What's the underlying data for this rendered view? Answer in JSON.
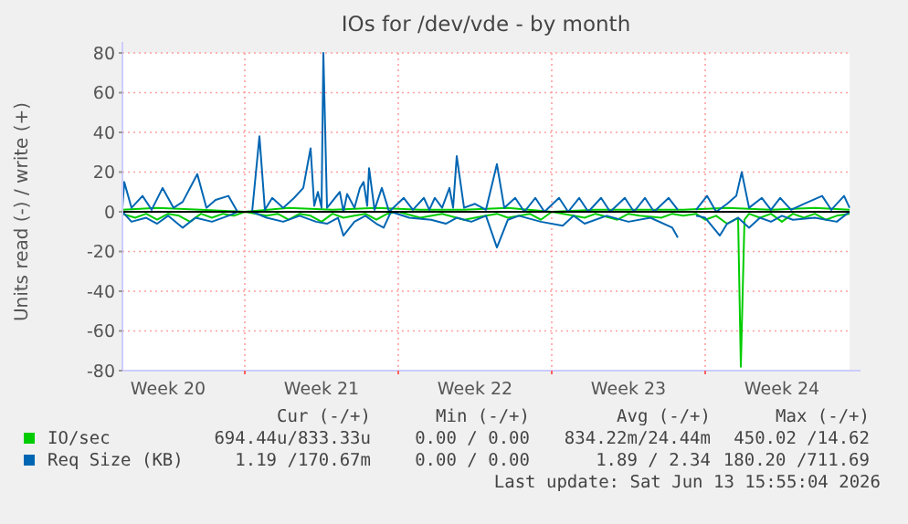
{
  "chart_data": {
    "type": "line",
    "title": "IOs for /dev/vde - by month",
    "ylabel": "Units read (-) / write (+)",
    "xlim": [
      "2026-05-11T10:00",
      "2026-06-13T14:00"
    ],
    "xticks": [
      {
        "value": "2026-05-13T12:00",
        "label": "Week 20"
      },
      {
        "value": "2026-05-17T00:00",
        "label": null
      },
      {
        "value": "2026-05-20T12:00",
        "label": "Week 21"
      },
      {
        "value": "2026-05-24T00:00",
        "label": null
      },
      {
        "value": "2026-05-27T12:00",
        "label": "Week 22"
      },
      {
        "value": "2026-05-31T00:00",
        "label": null
      },
      {
        "value": "2026-06-03T12:00",
        "label": "Week 23"
      },
      {
        "value": "2026-06-07T00:00",
        "label": null
      },
      {
        "value": "2026-06-10T12:00",
        "label": "Week 24"
      }
    ],
    "ylim": [
      -80,
      80
    ],
    "yticks": [
      -80,
      -60,
      -40,
      -20,
      0,
      20,
      40,
      60,
      80
    ],
    "grid": true,
    "legend": "bottom",
    "ref_lines": [
      {
        "axis": "y",
        "value": 0,
        "color": "#000000"
      }
    ],
    "series": [
      {
        "color": "#00cc00",
        "x": [
          "2026-05-11T10:00",
          "2026-05-12T00:00",
          "2026-05-12T12:00",
          "2026-05-13T00:00",
          "2026-05-13T12:00",
          "2026-05-14T00:00",
          "2026-05-14T12:00",
          "2026-05-15T00:00",
          "2026-05-15T12:00",
          "2026-05-16T00:00",
          "2026-05-16T12:00",
          "2026-05-17T00:00",
          "2026-05-18T00:00",
          "2026-05-18T12:00",
          "2026-05-19T00:00",
          "2026-05-19T12:00",
          "2026-05-20T00:00",
          "2026-05-20T12:00",
          "2026-05-21T00:00",
          "2026-05-21T12:00",
          "2026-05-22T00:00",
          "2026-05-22T12:00",
          "2026-05-23T00:00",
          "2026-05-23T12:00",
          "2026-05-24T00:00",
          "2026-05-25T00:00",
          "2026-05-26T00:00",
          "2026-05-27T00:00",
          "2026-05-28T00:00",
          "2026-05-28T12:00",
          "2026-05-29T00:00",
          "2026-05-30T00:00",
          "2026-05-30T12:00",
          "2026-05-31T00:00",
          "2026-06-01T00:00",
          "2026-06-01T12:00",
          "2026-06-02T00:00",
          "2026-06-03T00:00",
          "2026-06-03T12:00",
          "2026-06-04T00:00",
          "2026-06-05T00:00",
          "2026-06-05T12:00",
          "2026-06-06T00:00",
          "2026-06-06T14:00",
          "2026-06-07T00:00",
          "2026-06-07T12:00",
          "2026-06-08T00:00",
          "2026-06-08T12:00",
          "2026-06-08T15:00",
          "2026-06-08T19:00",
          "2026-06-09T00:00",
          "2026-06-09T12:00",
          "2026-06-10T00:00",
          "2026-06-10T12:00",
          "2026-06-11T00:00",
          "2026-06-11T12:00",
          "2026-06-12T00:00",
          "2026-06-12T12:00",
          "2026-06-13T00:00",
          "2026-06-13T14:00"
        ],
        "values": [
          -1,
          -3,
          -1,
          -4,
          -1,
          -2,
          -5,
          -1,
          -3,
          -1,
          -2,
          0,
          -2,
          -1,
          -4,
          -1,
          -2,
          -5,
          -1,
          -3,
          -2,
          -1,
          -4,
          -1,
          0,
          -3,
          -1,
          -4,
          -2,
          -1,
          -3,
          -1,
          -4,
          0,
          -2,
          -3,
          -1,
          -4,
          -1,
          -2,
          -3,
          -1,
          -2,
          -1,
          -4,
          -2,
          -6,
          -3,
          -78,
          -4,
          -1,
          -3,
          -1,
          -5,
          -1,
          -3,
          -1,
          -4,
          -2,
          -1
        ]
      },
      {
        "color": "#0066b3",
        "x": [
          "2026-05-11T10:00",
          "2026-05-11T20:00",
          "2026-05-12T12:00",
          "2026-05-13T00:00",
          "2026-05-13T12:00",
          "2026-05-14T04:00",
          "2026-05-14T18:00",
          "2026-05-15T12:00",
          "2026-05-16T06:00",
          "2026-05-16T16:00",
          "2026-05-17T08:00",
          "2026-05-18T00:00",
          "2026-05-18T18:00",
          "2026-05-19T12:00",
          "2026-05-20T06:00",
          "2026-05-20T18:00",
          "2026-05-21T06:00",
          "2026-05-21T12:00",
          "2026-05-22T00:00",
          "2026-05-22T12:00",
          "2026-05-23T00:00",
          "2026-05-23T08:00",
          "2026-05-23T16:00",
          "2026-05-24T12:00",
          "2026-05-25T12:00",
          "2026-05-26T04:00",
          "2026-05-26T16:00",
          "2026-05-27T08:00",
          "2026-05-28T00:00",
          "2026-05-28T12:00",
          "2026-05-29T00:00",
          "2026-05-29T12:00",
          "2026-05-30T12:00",
          "2026-05-31T12:00",
          "2026-06-01T00:00",
          "2026-06-01T12:00",
          "2026-06-02T12:00",
          "2026-06-03T12:00",
          "2026-06-04T12:00",
          "2026-06-05T12:00",
          "2026-06-05T18:00",
          "2026-06-06T06:00",
          "2026-06-06T14:00",
          "2026-06-07T00:00",
          "2026-06-07T16:00",
          "2026-06-08T00:00",
          "2026-06-08T12:00",
          "2026-06-09T00:00",
          "2026-06-09T12:00",
          "2026-06-10T00:00",
          "2026-06-10T12:00",
          "2026-06-11T00:00",
          "2026-06-12T00:00",
          "2026-06-13T00:00",
          "2026-06-13T14:00"
        ],
        "values": [
          0,
          -5,
          -3,
          -6,
          -2,
          -8,
          -3,
          -5,
          -2,
          0,
          0,
          -3,
          -5,
          -2,
          -5,
          -6,
          -3,
          -12,
          -5,
          -2,
          -6,
          -8,
          0,
          -3,
          -4,
          -6,
          -3,
          -5,
          -2,
          -18,
          -4,
          -2,
          -5,
          -7,
          -2,
          -6,
          -2,
          -5,
          -3,
          -8,
          -13,
          null,
          -2,
          -3,
          -12,
          -6,
          -3,
          -8,
          -3,
          -5,
          -2,
          -4,
          -3,
          -5,
          0
        ]
      },
      {
        "name": "IO/sec",
        "color": "#00cc00",
        "x": [
          "2026-05-11T10:00",
          "2026-05-13T00:00",
          "2026-05-15T00:00",
          "2026-05-17T00:00",
          "2026-05-19T00:00",
          "2026-05-21T00:00",
          "2026-05-23T00:00",
          "2026-05-25T00:00",
          "2026-05-27T00:00",
          "2026-05-29T00:00",
          "2026-05-31T00:00",
          "2026-06-02T00:00",
          "2026-06-04T00:00",
          "2026-06-06T00:00",
          "2026-06-08T00:00",
          "2026-06-10T00:00",
          "2026-06-12T00:00",
          "2026-06-13T14:00"
        ],
        "values": [
          1,
          2,
          1,
          0,
          2,
          1,
          2,
          1,
          1,
          2,
          0,
          1,
          1,
          1,
          2,
          1,
          2,
          1
        ]
      },
      {
        "name": "Req Size (KB)",
        "color": "#0066b3",
        "x": [
          "2026-05-11T10:00",
          "2026-05-11T12:00",
          "2026-05-11T20:00",
          "2026-05-12T08:00",
          "2026-05-12T18:00",
          "2026-05-13T06:00",
          "2026-05-13T18:00",
          "2026-05-14T04:00",
          "2026-05-14T20:00",
          "2026-05-15T06:00",
          "2026-05-15T16:00",
          "2026-05-16T06:00",
          "2026-05-16T16:00",
          "2026-05-17T08:00",
          "2026-05-17T16:00",
          "2026-05-17T22:00",
          "2026-05-18T06:00",
          "2026-05-18T18:00",
          "2026-05-19T06:00",
          "2026-05-19T16:00",
          "2026-05-20T00:00",
          "2026-05-20T04:00",
          "2026-05-20T08:00",
          "2026-05-20T12:00",
          "2026-05-20T14:00",
          "2026-05-20T18:00",
          "2026-05-21T08:00",
          "2026-05-21T12:00",
          "2026-05-21T16:00",
          "2026-05-22T00:00",
          "2026-05-22T06:00",
          "2026-05-22T10:00",
          "2026-05-22T14:00",
          "2026-05-22T16:00",
          "2026-05-22T22:00",
          "2026-05-23T06:00",
          "2026-05-23T14:00",
          "2026-05-24T06:00",
          "2026-05-24T16:00",
          "2026-05-25T04:00",
          "2026-05-25T10:00",
          "2026-05-25T16:00",
          "2026-05-26T00:00",
          "2026-05-26T08:00",
          "2026-05-26T12:00",
          "2026-05-26T16:00",
          "2026-05-27T00:00",
          "2026-05-27T12:00",
          "2026-05-28T00:00",
          "2026-05-28T12:00",
          "2026-05-28T20:00",
          "2026-05-29T08:00",
          "2026-05-29T18:00",
          "2026-05-30T06:00",
          "2026-05-30T16:00",
          "2026-05-31T08:00",
          "2026-05-31T18:00",
          "2026-06-01T06:00",
          "2026-06-01T16:00",
          "2026-06-02T06:00",
          "2026-06-02T16:00",
          "2026-06-03T08:00",
          "2026-06-03T18:00",
          "2026-06-04T06:00",
          "2026-06-04T16:00",
          "2026-06-05T08:00",
          "2026-06-05T18:00",
          "2026-06-06T06:00",
          "2026-06-06T14:00",
          "2026-06-07T02:00",
          "2026-06-07T12:00",
          "2026-06-08T00:00",
          "2026-06-08T10:00",
          "2026-06-08T16:00",
          "2026-06-09T00:00",
          "2026-06-09T14:00",
          "2026-06-10T00:00",
          "2026-06-10T10:00",
          "2026-06-10T22:00",
          "2026-06-11T12:00",
          "2026-06-12T08:00",
          "2026-06-12T18:00",
          "2026-06-13T08:00",
          "2026-06-13T14:00"
        ],
        "values": [
          2,
          15,
          2,
          8,
          1,
          12,
          2,
          5,
          19,
          2,
          6,
          8,
          0,
          0,
          38,
          1,
          7,
          2,
          7,
          12,
          32,
          3,
          10,
          2,
          80,
          2,
          10,
          0,
          9,
          2,
          12,
          15,
          3,
          22,
          1,
          12,
          0,
          7,
          1,
          7,
          1,
          7,
          2,
          12,
          2,
          28,
          2,
          4,
          1,
          24,
          2,
          7,
          0,
          7,
          0,
          7,
          0,
          7,
          0,
          7,
          0,
          7,
          0,
          7,
          0,
          7,
          1,
          null,
          1,
          8,
          0,
          4,
          8,
          20,
          2,
          7,
          1,
          7,
          1,
          4,
          8,
          1,
          8,
          2
        ]
      }
    ],
    "annotations": [
      "Cur (-/+)",
      "Min (-/+)",
      "Avg (-/+)",
      "Max (-/+)",
      "694.44u/833.33u",
      "0.00 / 0.00",
      "834.22m/24.44m",
      "450.02 /14.62",
      "1.19 /170.67m",
      "0.00 / 0.00",
      "1.89 / 2.34",
      "180.20 /711.69",
      "Last update: Sat Jun 13 15:55:04 2026"
    ]
  }
}
